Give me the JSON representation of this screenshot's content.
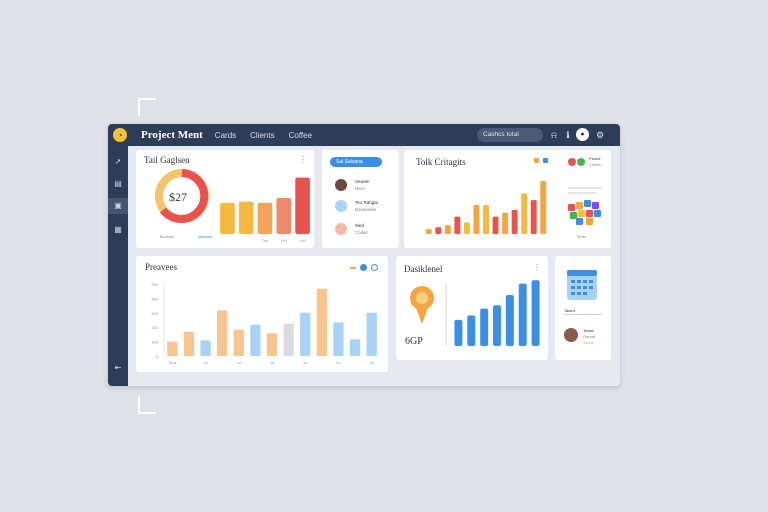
{
  "app": {
    "title": "Project Ment",
    "logo_glyph": "◔"
  },
  "nav": {
    "items": [
      "Cards",
      "Clients",
      "Coffee"
    ]
  },
  "search": {
    "placeholder": "Cashcs total"
  },
  "topbar_icons": [
    "bell-icon",
    "info-icon",
    "gear-icon"
  ],
  "sidebar": {
    "icons": [
      "rocket-icon",
      "document-icon",
      "folder-icon",
      "calendar-icon"
    ],
    "bottom_icon": "collapse-icon"
  },
  "cards": {
    "gauge": {
      "title": "Tail Gaglsen",
      "value": "$27",
      "menu": "⋮",
      "legend": [
        "Buctuat",
        "Mesaun"
      ]
    },
    "list": {
      "button": "Sal  Salsana",
      "items": [
        {
          "name": "Seaole",
          "sub": "Nero"
        },
        {
          "name": "Teo Rahgar",
          "sub": "Bouanieas"
        },
        {
          "name": "Sled",
          "sub": "Cailas"
        }
      ]
    },
    "categories": {
      "title": "Tolk Critagits",
      "legend": {
        "title": "Paved",
        "sub": "Criters",
        "foot": "Tome"
      }
    },
    "previews": {
      "title": "Preavees"
    },
    "dashboard": {
      "title": "Dasiklenel",
      "value": "6GP"
    },
    "calendar": {
      "caption": "Taaed",
      "person": {
        "name": "Tease",
        "role": "Garedl",
        "tag": "Sloua"
      }
    }
  },
  "colors": {
    "navy": "#2d3d57",
    "orange": "#f2a541",
    "red": "#e8534e",
    "blue": "#3d8fe6",
    "lightblue": "#a9d3f5",
    "peach": "#f7c58d"
  },
  "chart_data": [
    {
      "type": "bar",
      "title": "Tail Gaglsen",
      "categories": [
        "",
        "",
        "Tue",
        "Fet",
        "Lev"
      ],
      "values": [
        26,
        27,
        26,
        30,
        47
      ],
      "ylim": [
        0,
        50
      ]
    },
    {
      "type": "bar",
      "title": "Tolk Critagits",
      "categories": [
        "",
        "",
        "",
        "",
        "",
        "",
        "",
        "",
        "",
        "",
        "",
        "",
        ""
      ],
      "values": [
        5,
        7,
        9,
        18,
        12,
        30,
        30,
        18,
        22,
        25,
        42,
        35,
        55
      ],
      "ylim": [
        0,
        60
      ]
    },
    {
      "type": "bar",
      "title": "Preavees",
      "categories": [
        "Sua",
        "",
        "Ju",
        "",
        "Ju",
        "",
        "Ju",
        "",
        "Ju",
        "",
        "Ju",
        "",
        "Ju"
      ],
      "values": [
        12,
        20,
        13,
        38,
        22,
        26,
        19,
        27,
        36,
        56,
        28,
        14,
        36
      ],
      "yticks": [
        "500",
        "450",
        "300",
        "200",
        "100",
        "0"
      ],
      "ylim": [
        0,
        60
      ]
    },
    {
      "type": "bar",
      "title": "Dasiklenel",
      "categories": [
        "",
        "",
        "",
        "",
        "",
        "",
        ""
      ],
      "values": [
        23,
        27,
        33,
        36,
        45,
        55,
        58
      ],
      "ylim": [
        0,
        60
      ]
    }
  ]
}
